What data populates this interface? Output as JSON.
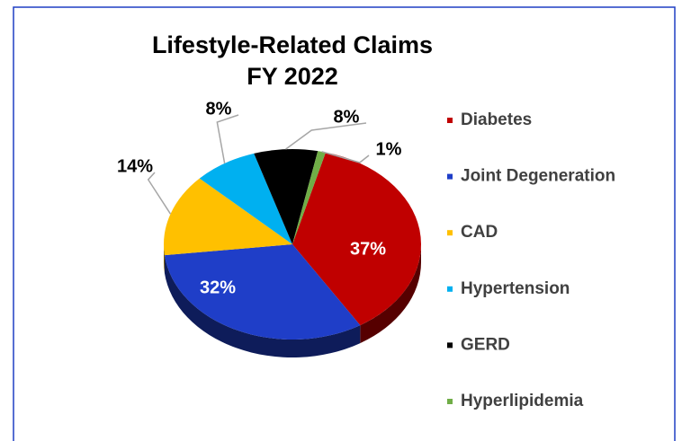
{
  "chart_data": {
    "type": "pie",
    "title": [
      "Lifestyle-Related Claims",
      "FY 2022"
    ],
    "categories": [
      "Diabetes",
      "Joint Degeneration",
      "CAD",
      "Hypertension",
      "GERD",
      "Hyperlipidemia"
    ],
    "values": [
      37,
      32,
      14,
      8,
      8,
      1
    ],
    "value_labels": [
      "37%",
      "32%",
      "14%",
      "8%",
      "8%",
      "1%"
    ],
    "colors": [
      "#c00000",
      "#1f3ec8",
      "#ffc000",
      "#00b0f0",
      "#000000",
      "#70ad47"
    ],
    "legend": "right"
  }
}
